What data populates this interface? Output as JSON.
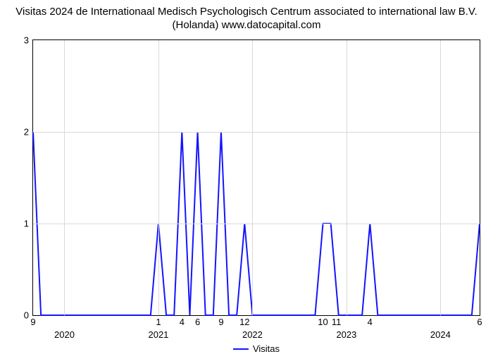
{
  "title_line1": "Visitas 2024 de Internationaal Medisch Psychologisch Centrum associated to international law B.V.",
  "title_line2": "(Holanda) www.datocapital.com",
  "chart": {
    "type": "line",
    "background_color": "#ffffff",
    "grid_color": "#d9d9d9",
    "axis_color": "#000000",
    "series_color": "#1414ff",
    "line_width": 2,
    "ylim": [
      0,
      3
    ],
    "ytick_step": 1,
    "yticks": [
      0,
      1,
      2,
      3
    ],
    "x_start": {
      "year": 2019,
      "month": 9
    },
    "x_end": {
      "year": 2024,
      "month": 6
    },
    "year_ticks": [
      2020,
      2021,
      2022,
      2023,
      2024
    ],
    "minor_labels": [
      {
        "year": 2019,
        "month": 9,
        "text": "9"
      },
      {
        "year": 2021,
        "month": 1,
        "text": "1"
      },
      {
        "year": 2021,
        "month": 4,
        "text": "4"
      },
      {
        "year": 2021,
        "month": 6,
        "text": "6"
      },
      {
        "year": 2021,
        "month": 9,
        "text": "9"
      },
      {
        "year": 2021,
        "month": 12,
        "text": "12"
      },
      {
        "year": 2022,
        "month": 10,
        "text": "10"
      },
      {
        "year": 2022,
        "month": 11,
        "text": "11",
        "nudge": 8
      },
      {
        "year": 2023,
        "month": 4,
        "text": "4"
      },
      {
        "year": 2024,
        "month": 6,
        "text": "6"
      }
    ],
    "points": [
      {
        "year": 2019,
        "month": 9,
        "value": 2
      },
      {
        "year": 2019,
        "month": 10,
        "value": 0
      },
      {
        "year": 2020,
        "month": 12,
        "value": 0
      },
      {
        "year": 2021,
        "month": 1,
        "value": 1
      },
      {
        "year": 2021,
        "month": 2,
        "value": 0
      },
      {
        "year": 2021,
        "month": 3,
        "value": 0
      },
      {
        "year": 2021,
        "month": 4,
        "value": 2
      },
      {
        "year": 2021,
        "month": 5,
        "value": 0
      },
      {
        "year": 2021,
        "month": 6,
        "value": 2
      },
      {
        "year": 2021,
        "month": 7,
        "value": 0
      },
      {
        "year": 2021,
        "month": 8,
        "value": 0
      },
      {
        "year": 2021,
        "month": 9,
        "value": 2
      },
      {
        "year": 2021,
        "month": 10,
        "value": 0
      },
      {
        "year": 2021,
        "month": 11,
        "value": 0
      },
      {
        "year": 2021,
        "month": 12,
        "value": 1
      },
      {
        "year": 2022,
        "month": 1,
        "value": 0
      },
      {
        "year": 2022,
        "month": 9,
        "value": 0
      },
      {
        "year": 2022,
        "month": 10,
        "value": 1
      },
      {
        "year": 2022,
        "month": 11,
        "value": 1
      },
      {
        "year": 2022,
        "month": 12,
        "value": 0
      },
      {
        "year": 2023,
        "month": 3,
        "value": 0
      },
      {
        "year": 2023,
        "month": 4,
        "value": 1
      },
      {
        "year": 2023,
        "month": 5,
        "value": 0
      },
      {
        "year": 2024,
        "month": 5,
        "value": 0
      },
      {
        "year": 2024,
        "month": 6,
        "value": 1
      }
    ],
    "legend_label": "Visitas"
  }
}
